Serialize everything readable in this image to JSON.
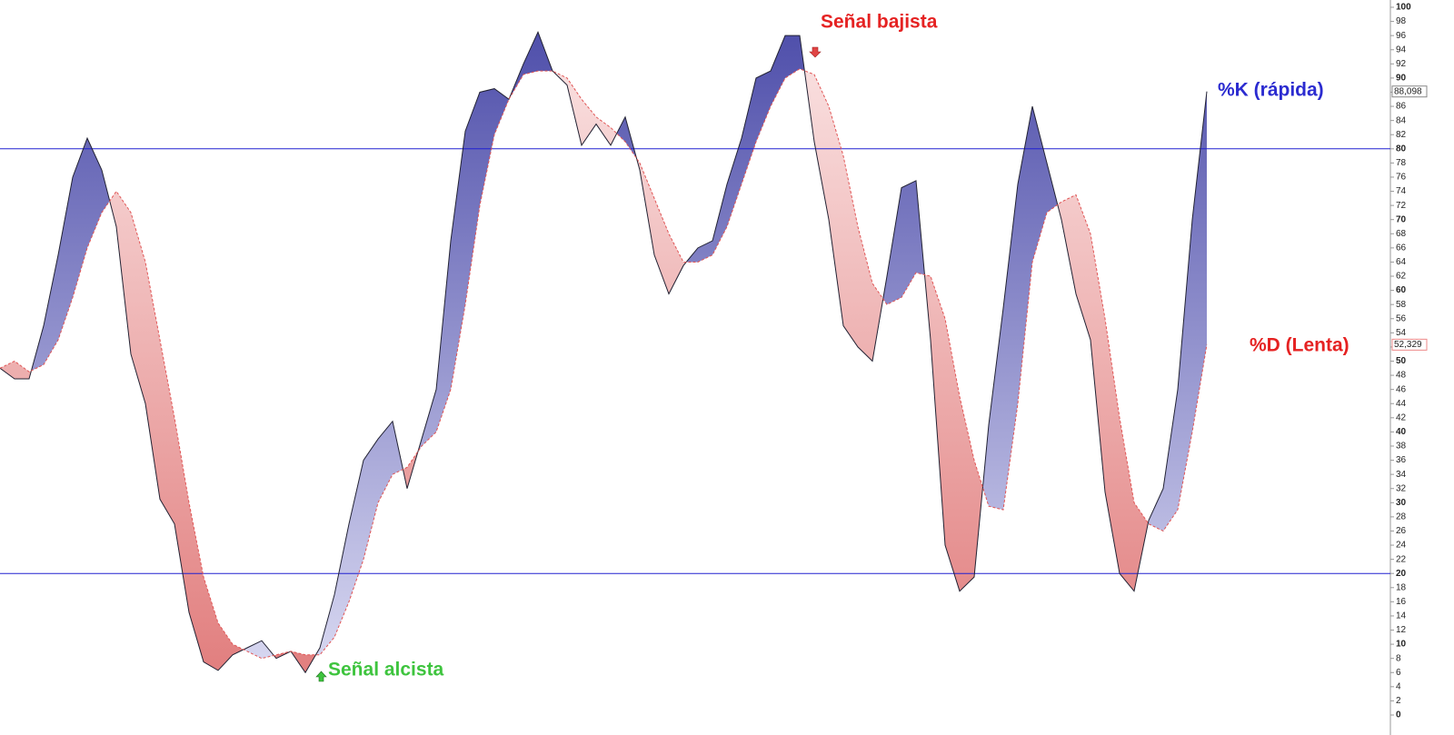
{
  "chart_data": {
    "type": "stochastic",
    "series": [
      {
        "name": "%K (rápida)",
        "color": "#2b2bd0",
        "line_color": "#222233",
        "fill_color": "#5a5ab0",
        "last_value_label": "88,098",
        "values": [
          49,
          47.5,
          47.5,
          55,
          65,
          76,
          81.5,
          77,
          69,
          51,
          44,
          30.5,
          27,
          14.5,
          7.5,
          6.3,
          8.5,
          9.5,
          10.5,
          8,
          9,
          6,
          9.5,
          17,
          27,
          36,
          39,
          41.5,
          32,
          39,
          46,
          67,
          82.5,
          88,
          88.5,
          87,
          92,
          96.5,
          91,
          89,
          80.5,
          83.5,
          80.5,
          84.5,
          77,
          65,
          59.5,
          63.5,
          66,
          67,
          75,
          81.5,
          90,
          91,
          96,
          96,
          81,
          70,
          55,
          52,
          50,
          62,
          74.5,
          75.5,
          53,
          24,
          17.5,
          19.5,
          41,
          57.5,
          75,
          86,
          78,
          70,
          59.5,
          53,
          31.5,
          20,
          17.5,
          27.5,
          32,
          46,
          70,
          88.098
        ]
      },
      {
        "name": "%D (Lenta)",
        "color": "#e52222",
        "line_color": "#e05555",
        "fill_color": "#e88a8a",
        "last_value_label": "52,329",
        "values": [
          49,
          50,
          48.5,
          49.5,
          53,
          59,
          66,
          71,
          74,
          71,
          64,
          53,
          42,
          30,
          19.5,
          13,
          10,
          9,
          8,
          8.5,
          9,
          8.5,
          8.5,
          11,
          16,
          22,
          30,
          34,
          35,
          38,
          40,
          46,
          58,
          72,
          82,
          87,
          90.5,
          91,
          91,
          90,
          87,
          84.5,
          83,
          81,
          78,
          73,
          68,
          64,
          64,
          65,
          69,
          75,
          81,
          86,
          90,
          91.3,
          90.5,
          86,
          79,
          69,
          61,
          58,
          59,
          62.5,
          62,
          56,
          45,
          36,
          29.5,
          29,
          44,
          64,
          71,
          72.5,
          73.5,
          68,
          56,
          42,
          30,
          27,
          26,
          29,
          40,
          52.329
        ]
      }
    ],
    "levels": [
      80,
      20
    ],
    "level_color": "#2020d0",
    "ylim": [
      0,
      100
    ],
    "yticks": [
      0,
      2,
      4,
      6,
      8,
      10,
      12,
      14,
      16,
      18,
      20,
      22,
      24,
      26,
      28,
      30,
      32,
      34,
      36,
      38,
      40,
      42,
      44,
      46,
      48,
      50,
      52,
      54,
      56,
      58,
      60,
      62,
      64,
      66,
      68,
      70,
      72,
      74,
      76,
      78,
      80,
      82,
      84,
      86,
      88,
      90,
      92,
      94,
      96,
      98,
      100
    ],
    "annotations": [
      {
        "text": "Señal bajista",
        "color": "#e52222"
      },
      {
        "text": "Señal alcista",
        "color": "#3ec43e"
      }
    ]
  }
}
